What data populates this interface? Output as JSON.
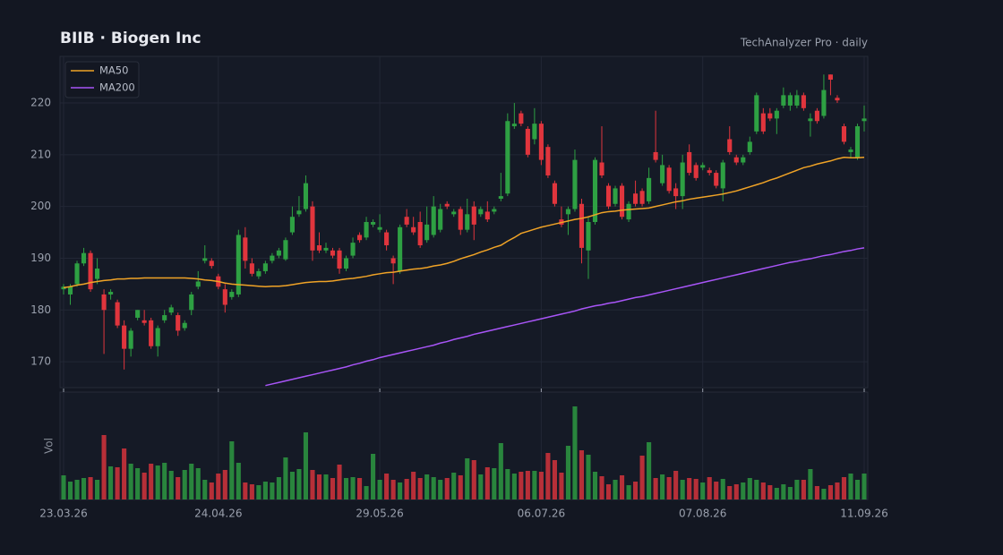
{
  "chart_data": {
    "type": "candlestick",
    "title": "BIIB  ·  Biogen Inc",
    "subtitle": "TechAnalyzer Pro · daily",
    "categories": [
      "23.03.26",
      null,
      null,
      null,
      null,
      null,
      null,
      null,
      null,
      null,
      null,
      null,
      null,
      null,
      null,
      null,
      null,
      null,
      null,
      null,
      null,
      null,
      null,
      "24.04.26",
      null,
      null,
      null,
      null,
      null,
      null,
      null,
      null,
      null,
      null,
      null,
      null,
      null,
      null,
      null,
      null,
      null,
      null,
      null,
      null,
      null,
      null,
      null,
      "29.05.26",
      null,
      null,
      null,
      null,
      null,
      null,
      null,
      null,
      null,
      null,
      null,
      null,
      null,
      null,
      null,
      null,
      null,
      null,
      null,
      null,
      null,
      null,
      null,
      "06.07.26",
      null,
      null,
      null,
      null,
      null,
      null,
      null,
      null,
      null,
      null,
      null,
      null,
      null,
      null,
      null,
      null,
      null,
      null,
      null,
      null,
      null,
      null,
      null,
      "07.08.26",
      null,
      null,
      null,
      null,
      null,
      null,
      null,
      null,
      null,
      null,
      null,
      null,
      null,
      null,
      null,
      null,
      null,
      null,
      null,
      null,
      null,
      null,
      null,
      "11.09.26"
    ],
    "ohlc": [
      [
        184,
        185,
        183,
        184.5
      ],
      [
        183,
        185,
        181,
        184.5
      ],
      [
        185,
        189.5,
        184.5,
        189
      ],
      [
        189,
        192,
        188.5,
        191
      ],
      [
        191,
        191.5,
        183.5,
        184
      ],
      [
        186,
        190,
        185,
        188
      ],
      [
        183,
        184,
        171.5,
        180
      ],
      [
        183,
        184,
        182,
        183.5
      ],
      [
        181.5,
        182,
        176.5,
        177
      ],
      [
        177,
        178,
        168.5,
        172.5
      ],
      [
        172.5,
        176.5,
        171,
        176
      ],
      [
        178.5,
        180,
        178,
        180
      ],
      [
        178,
        180,
        177,
        177.5
      ],
      [
        178,
        178.5,
        172.5,
        173
      ],
      [
        173,
        177,
        171,
        176.5
      ],
      [
        178,
        180,
        177.5,
        179
      ],
      [
        179.5,
        181,
        179,
        180.5
      ],
      [
        179,
        179.5,
        175,
        176
      ],
      [
        176.5,
        178,
        176,
        177.5
      ],
      [
        180,
        183.5,
        179,
        183
      ],
      [
        184.5,
        187.5,
        184,
        185.5
      ],
      [
        189.5,
        192.5,
        189,
        190
      ],
      [
        189.5,
        190,
        188,
        188.5
      ],
      [
        186.5,
        187,
        184,
        184.5
      ],
      [
        184,
        185,
        179.5,
        181
      ],
      [
        182.5,
        184,
        182,
        183.5
      ],
      [
        183,
        195.5,
        182.5,
        194.5
      ],
      [
        194,
        196,
        188,
        189.5
      ],
      [
        189,
        190,
        186.5,
        187
      ],
      [
        186.5,
        188,
        186,
        187.5
      ],
      [
        187.5,
        189.5,
        187,
        189
      ],
      [
        189.5,
        191,
        189,
        190.5
      ],
      [
        190.5,
        192,
        190,
        191.5
      ],
      [
        189.8,
        194,
        189.5,
        193.5
      ],
      [
        195,
        200,
        194.5,
        198
      ],
      [
        198.5,
        202,
        198,
        199.2
      ],
      [
        199.5,
        206,
        199,
        204.5
      ],
      [
        200,
        201,
        189.5,
        191.5
      ],
      [
        192.5,
        195,
        191,
        191.5
      ],
      [
        191.5,
        193,
        191,
        192
      ],
      [
        191.5,
        192,
        190,
        190.5
      ],
      [
        191.5,
        192,
        187,
        188
      ],
      [
        188,
        190.5,
        187.5,
        190
      ],
      [
        190.5,
        194,
        190,
        193
      ],
      [
        194.5,
        195,
        193,
        193.5
      ],
      [
        194,
        198,
        193.5,
        197
      ],
      [
        196.5,
        197.5,
        196,
        197
      ],
      [
        195.5,
        198.5,
        195,
        196
      ],
      [
        195,
        195.5,
        191.5,
        192.5
      ],
      [
        190,
        190.5,
        185,
        189
      ],
      [
        187.5,
        196.5,
        187,
        196
      ],
      [
        198,
        199.5,
        196,
        196.5
      ],
      [
        196,
        198,
        194.5,
        195
      ],
      [
        197,
        199,
        192,
        192.5
      ],
      [
        193.5,
        200,
        193,
        196.5
      ],
      [
        194.5,
        202,
        194,
        200
      ],
      [
        195.5,
        200.5,
        195,
        199.5
      ],
      [
        200.5,
        201,
        199.5,
        200
      ],
      [
        198.5,
        199.5,
        198,
        199
      ],
      [
        199.5,
        200,
        194.5,
        195.5
      ],
      [
        195.5,
        201.5,
        195,
        198.5
      ],
      [
        200,
        201,
        193.5,
        196.5
      ],
      [
        198.5,
        200,
        198,
        199.5
      ],
      [
        199,
        201,
        197,
        197.5
      ],
      [
        199,
        200,
        198.5,
        199.5
      ],
      [
        201.5,
        206.5,
        201,
        202
      ],
      [
        202.5,
        218,
        202,
        216.5
      ],
      [
        215.5,
        220,
        215,
        216
      ],
      [
        218,
        218.5,
        215.5,
        216
      ],
      [
        215,
        215.5,
        209.5,
        210
      ],
      [
        213,
        219,
        212,
        216
      ],
      [
        216,
        216.5,
        208,
        209
      ],
      [
        211.5,
        212,
        205.5,
        206
      ],
      [
        204.5,
        205,
        200,
        200.5
      ],
      [
        197.5,
        200,
        196,
        196.5
      ],
      [
        198.5,
        200,
        194.5,
        199.5
      ],
      [
        199.5,
        211,
        199,
        209
      ],
      [
        200.5,
        201.5,
        189,
        192
      ],
      [
        191.5,
        198,
        186,
        197
      ],
      [
        197,
        209.5,
        196.5,
        209
      ],
      [
        208.5,
        215.5,
        205.5,
        206
      ],
      [
        204,
        204.5,
        199.5,
        200
      ],
      [
        200.5,
        204,
        200,
        203.5
      ],
      [
        204,
        204.5,
        197.5,
        198
      ],
      [
        197.5,
        201,
        197,
        200.5
      ],
      [
        202.5,
        205,
        200,
        200.5
      ],
      [
        203,
        203.5,
        200,
        200.5
      ],
      [
        201,
        207.5,
        200.5,
        205.5
      ],
      [
        210.5,
        218.5,
        208.5,
        209
      ],
      [
        204.5,
        210,
        204,
        208
      ],
      [
        207.5,
        208,
        202.5,
        203
      ],
      [
        203.5,
        204.5,
        199.5,
        202
      ],
      [
        202,
        210,
        199.5,
        208.5
      ],
      [
        210.5,
        212,
        206,
        206.5
      ],
      [
        208,
        208.5,
        205,
        205.5
      ],
      [
        207.5,
        208.5,
        207,
        208
      ],
      [
        207,
        207.5,
        206,
        206.5
      ],
      [
        206.5,
        207,
        203.5,
        204
      ],
      [
        203.5,
        209,
        201,
        208.5
      ],
      [
        213,
        215.5,
        210,
        210.5
      ],
      [
        209.5,
        210,
        208,
        208.5
      ],
      [
        208.5,
        210,
        208,
        209.5
      ],
      [
        210.5,
        213.5,
        210,
        212.5
      ],
      [
        214.5,
        222,
        214,
        221.5
      ],
      [
        218,
        219,
        214,
        214.5
      ],
      [
        218,
        219,
        216.5,
        217
      ],
      [
        217,
        219,
        214,
        218.5
      ],
      [
        219.5,
        223,
        219,
        221.5
      ],
      [
        219.5,
        222,
        218.5,
        221.5
      ],
      [
        219.5,
        222.5,
        219,
        221.5
      ],
      [
        221.5,
        222,
        218.5,
        219
      ],
      [
        216.5,
        218,
        213.5,
        217
      ],
      [
        218.5,
        219,
        216,
        216.5
      ],
      [
        217.5,
        225.5,
        217,
        222.5
      ],
      [
        225.5,
        225.5,
        221.5,
        224.5
      ],
      [
        221,
        221.5,
        220,
        220.5
      ],
      [
        215.5,
        216,
        212,
        212.5
      ],
      [
        210.5,
        211.5,
        209.5,
        211
      ],
      [
        209.5,
        216,
        209,
        215.5
      ],
      [
        216.5,
        219.5,
        214.5,
        217
      ]
    ],
    "up_color": "#2ea043",
    "down_color": "#e0353d",
    "ylim": [
      165,
      229
    ],
    "yticks": [
      170,
      180,
      190,
      200,
      210,
      220
    ],
    "grid": true,
    "legend": "upper left",
    "series": [
      {
        "name": "MA50",
        "color": "#f0a326",
        "values": [
          184.3,
          184.5,
          184.8,
          185.0,
          185.3,
          185.5,
          185.7,
          185.8,
          186.0,
          186.0,
          186.1,
          186.1,
          186.2,
          186.2,
          186.2,
          186.2,
          186.2,
          186.2,
          186.2,
          186.1,
          186.0,
          185.8,
          185.7,
          185.5,
          185.2,
          185.0,
          184.9,
          184.8,
          184.7,
          184.6,
          184.5,
          184.6,
          184.6,
          184.7,
          184.9,
          185.1,
          185.3,
          185.4,
          185.5,
          185.5,
          185.6,
          185.8,
          186.0,
          186.1,
          186.3,
          186.5,
          186.8,
          187.0,
          187.2,
          187.3,
          187.5,
          187.7,
          187.9,
          188.0,
          188.2,
          188.5,
          188.7,
          189.0,
          189.4,
          189.9,
          190.3,
          190.7,
          191.2,
          191.6,
          192.1,
          192.5,
          193.3,
          194.0,
          194.8,
          195.2,
          195.6,
          196.0,
          196.3,
          196.6,
          196.9,
          197.2,
          197.5,
          197.7,
          198.0,
          198.4,
          198.8,
          199.0,
          199.1,
          199.3,
          199.4,
          199.5,
          199.6,
          199.7,
          200.0,
          200.3,
          200.6,
          200.9,
          201.1,
          201.4,
          201.6,
          201.8,
          202.0,
          202.2,
          202.4,
          202.7,
          203.0,
          203.4,
          203.8,
          204.2,
          204.6,
          205.1,
          205.5,
          206.0,
          206.5,
          207.0,
          207.5,
          207.8,
          208.2,
          208.5,
          208.8,
          209.2,
          209.5,
          209.4,
          209.4,
          209.5
        ]
      },
      {
        "name": "MA200",
        "color": "#a855f7",
        "values": [
          null,
          null,
          null,
          null,
          null,
          null,
          null,
          null,
          null,
          null,
          null,
          null,
          null,
          null,
          null,
          null,
          null,
          null,
          null,
          null,
          null,
          null,
          null,
          null,
          null,
          null,
          null,
          null,
          null,
          null,
          165.4,
          165.7,
          166.0,
          166.3,
          166.6,
          166.9,
          167.2,
          167.5,
          167.8,
          168.1,
          168.4,
          168.7,
          169.0,
          169.4,
          169.7,
          170.1,
          170.4,
          170.8,
          171.1,
          171.4,
          171.7,
          172.0,
          172.3,
          172.6,
          172.9,
          173.2,
          173.6,
          173.9,
          174.3,
          174.6,
          174.9,
          175.3,
          175.6,
          175.9,
          176.2,
          176.5,
          176.8,
          177.1,
          177.4,
          177.7,
          178.0,
          178.3,
          178.6,
          178.9,
          179.2,
          179.5,
          179.8,
          180.2,
          180.5,
          180.8,
          181.0,
          181.3,
          181.5,
          181.8,
          182.1,
          182.4,
          182.6,
          182.9,
          183.2,
          183.5,
          183.8,
          184.1,
          184.4,
          184.7,
          185.0,
          185.3,
          185.6,
          185.9,
          186.2,
          186.5,
          186.8,
          187.1,
          187.4,
          187.7,
          188.0,
          188.3,
          188.6,
          188.9,
          189.2,
          189.4,
          189.7,
          189.9,
          190.2,
          190.5,
          190.7,
          191.0,
          191.3,
          191.5,
          191.8,
          192.0
        ]
      }
    ],
    "volume": {
      "label": "Vol",
      "ylim": [
        0,
        120
      ],
      "values": [
        27,
        20,
        22,
        24,
        25,
        22,
        72,
        37,
        36,
        57,
        40,
        35,
        30,
        40,
        38,
        41,
        32,
        25,
        33,
        40,
        35,
        22,
        19,
        29,
        33,
        65,
        41,
        19,
        17,
        16,
        20,
        19,
        25,
        47,
        31,
        34,
        75,
        33,
        28,
        28,
        24,
        39,
        24,
        25,
        24,
        15,
        51,
        22,
        29,
        22,
        19,
        23,
        31,
        24,
        28,
        25,
        22,
        24,
        30,
        27,
        46,
        44,
        28,
        36,
        35,
        63,
        34,
        29,
        31,
        32,
        32,
        31,
        52,
        44,
        30,
        60,
        104,
        55,
        50,
        31,
        26,
        17,
        22,
        27,
        16,
        20,
        49,
        64,
        24,
        28,
        25,
        32,
        22,
        24,
        23,
        19,
        25,
        20,
        23,
        15,
        17,
        19,
        24,
        22,
        19,
        16,
        13,
        17,
        14,
        22,
        22,
        34,
        15,
        12,
        16,
        19,
        25,
        29,
        22,
        29
      ]
    }
  }
}
